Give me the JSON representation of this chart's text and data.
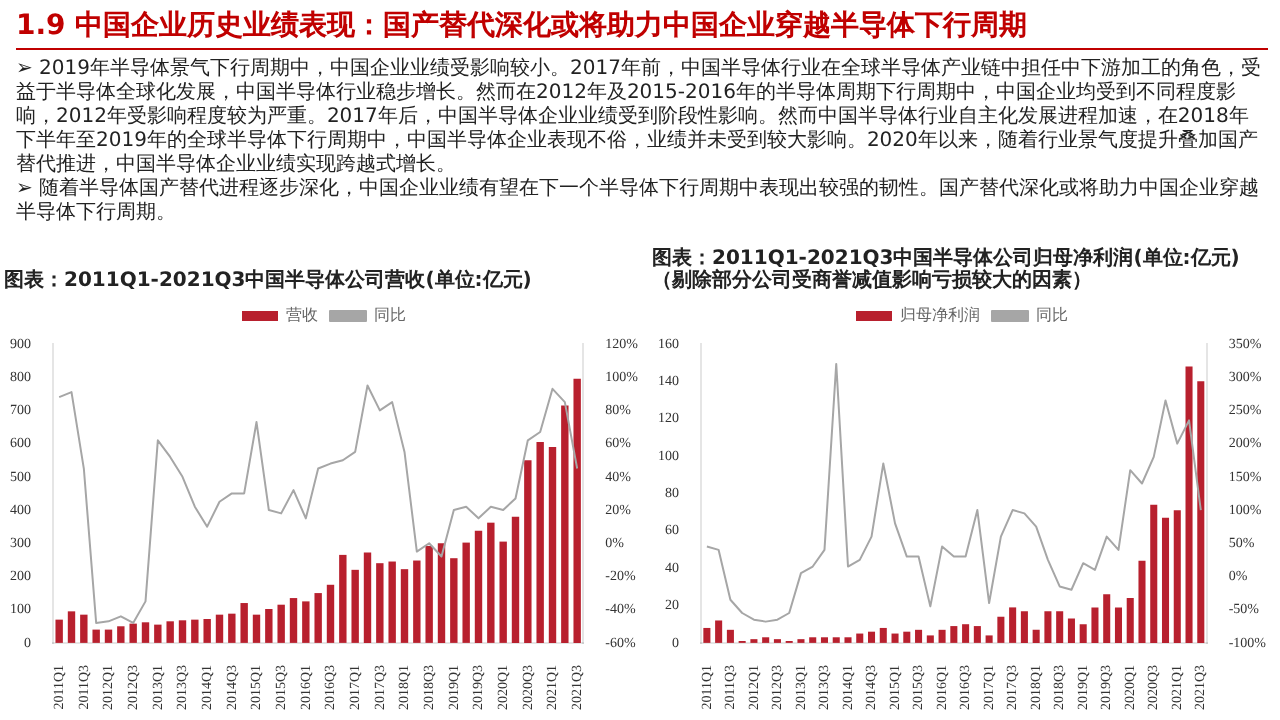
{
  "chart_data": [
    {
      "type": "other",
      "title": "1.9 中国企业历史业绩表现：国产替代深化或将助力中国企业穿越半导体下行周期",
      "annotations": [
        "➢ 2019年半导体景气下行周期中，中国企业业绩受影响较小。2017年前，中国半导体行业在全球半导体产业链中担任中下游加工的角色，受益于半导体全球化发展，中国半导体行业稳步增长。然而在2012年及2015-2016年的半导体周期下行周期中，中国企业均受到不同程度影响，2012年受影响程度较为严重。2017年后，中国半导体企业业绩受到阶段性影响。然而中国半导体行业自主化发展进程加速，在2018年下半年至2019年的全球半导体下行周期中，中国半导体企业表现不俗，业绩并未受到较大影响。2020年以来，随着行业景气度提升叠加国产替代推进，中国半导体企业业绩实现跨越式增长。",
        "➢ 随着半导体国产替代进程逐步深化，中国企业业绩有望在下一个半导体下行周期中表现出较强的韧性。国产替代深化或将助力中国企业穿越半导体下行周期。"
      ]
    },
    {
      "type": "bar",
      "title": "图表：2011Q1-2021Q3中国半导体公司营收(单位:亿元)",
      "categories": [
        "2011Q1",
        null,
        "2011Q3",
        null,
        "2012Q1",
        null,
        "2012Q3",
        null,
        "2013Q1",
        null,
        "2013Q3",
        null,
        "2014Q1",
        null,
        "2014Q3",
        null,
        "2015Q1",
        null,
        "2015Q3",
        null,
        "2016Q1",
        null,
        "2016Q3",
        null,
        "2017Q1",
        null,
        "2017Q3",
        null,
        "2018Q1",
        null,
        "2018Q3",
        null,
        "2019Q1",
        null,
        "2019Q3",
        null,
        "2020Q1",
        null,
        "2020Q3",
        null,
        "2021Q1",
        null,
        "2021Q3"
      ],
      "series": [
        {
          "name": "营收",
          "type": "bar",
          "color": "#b8202e",
          "values": [
            70,
            95,
            85,
            40,
            40,
            50,
            58,
            62,
            55,
            65,
            68,
            70,
            72,
            85,
            88,
            120,
            85,
            102,
            115,
            135,
            125,
            150,
            175,
            265,
            220,
            272,
            240,
            245,
            222,
            248,
            292,
            300,
            255,
            302,
            338,
            362,
            305,
            380,
            550,
            605,
            590,
            715,
            795
          ]
        },
        {
          "name": "同比",
          "type": "line",
          "axis": "y2",
          "color": "#a6a6a6",
          "values": [
            88,
            91,
            45,
            -48,
            -47,
            -44,
            -48,
            -35,
            62,
            52,
            40,
            22,
            10,
            25,
            30,
            30,
            73,
            20,
            18,
            32,
            15,
            45,
            48,
            50,
            55,
            95,
            80,
            85,
            55,
            -5,
            0,
            -8,
            20,
            22,
            15,
            22,
            20,
            27,
            62,
            67,
            93,
            85,
            45
          ]
        }
      ],
      "ylim": [
        0,
        900
      ],
      "yticks": [
        0,
        100,
        200,
        300,
        400,
        500,
        600,
        700,
        800,
        900
      ],
      "y2lim": [
        -60,
        120
      ],
      "y2ticks": [
        {
          "value": -60,
          "label": "-60%"
        },
        {
          "value": -40,
          "label": "-40%"
        },
        {
          "value": -20,
          "label": "-20%"
        },
        {
          "value": 0,
          "label": "0%"
        },
        {
          "value": 20,
          "label": "20%"
        },
        {
          "value": 40,
          "label": "40%"
        },
        {
          "value": 60,
          "label": "60%"
        },
        {
          "value": 80,
          "label": "80%"
        },
        {
          "value": 100,
          "label": "100%"
        },
        {
          "value": 120,
          "label": "120%"
        }
      ],
      "legend": "top",
      "grid": false,
      "marker": "none"
    },
    {
      "type": "bar",
      "title": "图表：2011Q1-2021Q3中国半导体公司归母净利润(单位:亿元) （剔除部分公司受商誉减值影响亏损较大的因素）",
      "categories": [
        "2011Q1",
        null,
        "2011Q3",
        null,
        "2012Q1",
        null,
        "2012Q3",
        null,
        "2013Q1",
        null,
        "2013Q3",
        null,
        "2014Q1",
        null,
        "2014Q3",
        null,
        "2015Q1",
        null,
        "2015Q3",
        null,
        "2016Q1",
        null,
        "2016Q3",
        null,
        "2017Q1",
        null,
        "2017Q3",
        null,
        "2018Q1",
        null,
        "2018Q3",
        null,
        "2019Q1",
        null,
        "2019Q3",
        null,
        "2020Q1",
        null,
        "2020Q3",
        null,
        "2021Q1",
        null,
        "2021Q3"
      ],
      "series": [
        {
          "name": "归母净利润",
          "type": "bar",
          "color": "#b8202e",
          "values": [
            8,
            12,
            7,
            1,
            2,
            3,
            2,
            1,
            2,
            3,
            3,
            3,
            3,
            5,
            6,
            8,
            5,
            6,
            7,
            4,
            7,
            9,
            10,
            9,
            4,
            14,
            19,
            17,
            7,
            17,
            17,
            13,
            10,
            19,
            26,
            19,
            24,
            44,
            74,
            67,
            71,
            148,
            140
          ]
        },
        {
          "name": "同比",
          "type": "line",
          "axis": "y2",
          "color": "#a6a6a6",
          "values": [
            45,
            40,
            -35,
            -55,
            -65,
            -68,
            -65,
            -55,
            5,
            15,
            40,
            320,
            15,
            25,
            60,
            170,
            80,
            30,
            30,
            -45,
            45,
            30,
            30,
            100,
            -40,
            60,
            100,
            95,
            75,
            25,
            -15,
            -20,
            20,
            10,
            60,
            40,
            160,
            140,
            180,
            265,
            200,
            235,
            100
          ]
        }
      ],
      "ylim": [
        0,
        160
      ],
      "yticks": [
        0,
        20,
        40,
        60,
        80,
        100,
        120,
        140,
        160
      ],
      "y2lim": [
        -100,
        350
      ],
      "y2ticks": [
        {
          "value": -100,
          "label": "-100%"
        },
        {
          "value": -50,
          "label": "-50%"
        },
        {
          "value": 0,
          "label": "0%"
        },
        {
          "value": 50,
          "label": "50%"
        },
        {
          "value": 100,
          "label": "100%"
        },
        {
          "value": 150,
          "label": "150%"
        },
        {
          "value": 200,
          "label": "200%"
        },
        {
          "value": 250,
          "label": "250%"
        },
        {
          "value": 300,
          "label": "300%"
        },
        {
          "value": 350,
          "label": "350%"
        }
      ],
      "legend": "top",
      "grid": false,
      "marker": "none"
    }
  ]
}
